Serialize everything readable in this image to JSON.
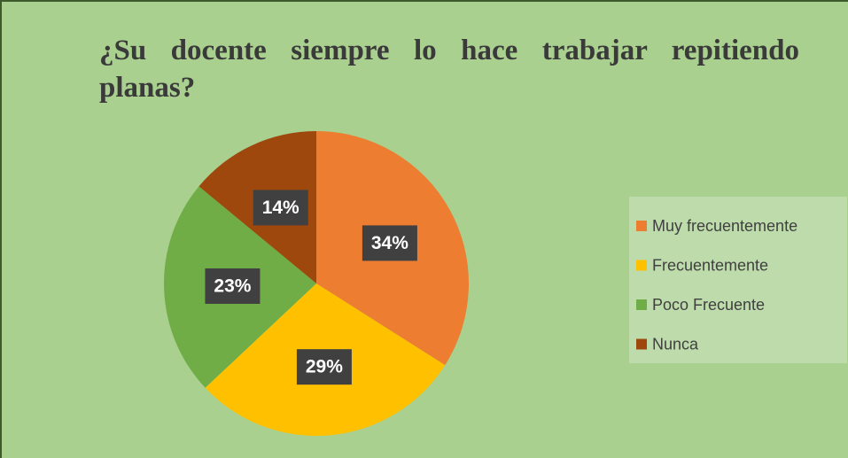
{
  "chart_data": {
    "type": "pie",
    "title": "¿Su docente siempre lo hace trabajar repitiendo planas?",
    "categories": [
      "Muy frecuentemente",
      "Frecuentemente",
      "Poco Frecuente",
      "Nunca"
    ],
    "values": [
      34,
      29,
      23,
      14
    ],
    "value_labels": [
      "34%",
      "29%",
      "23%",
      "14%"
    ],
    "colors": [
      "#ed7d31",
      "#ffc000",
      "#70ad47",
      "#9e480e"
    ],
    "legend": "right"
  }
}
